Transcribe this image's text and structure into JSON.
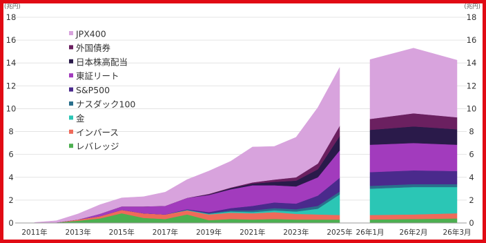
{
  "frame_color": "#e10a14",
  "chart_data": {
    "type": "area",
    "stacked": true,
    "unit_left": "(兆円)",
    "unit_right": "(兆円)",
    "ylim": [
      0,
      18
    ],
    "yticks": [
      0,
      2,
      4,
      6,
      8,
      10,
      12,
      14,
      16,
      18
    ],
    "grid": true,
    "legend_position": "top-left",
    "annual": {
      "x": [
        "2011年",
        "2012年",
        "2013年",
        "2014年",
        "2015年",
        "2016年",
        "2017年",
        "2018年",
        "2019年",
        "2020年",
        "2021年",
        "2022年",
        "2023年",
        "2024年",
        "2025年"
      ],
      "xticks": [
        "2011年",
        "2013年",
        "2015年",
        "2017年",
        "2019年",
        "2021年",
        "2023年",
        "2025年"
      ]
    },
    "monthly": {
      "x": [
        "26年1月",
        "26年2月",
        "26年3月"
      ]
    },
    "series": [
      {
        "name": "レバレッジ",
        "color": "#4caf50",
        "annual": [
          0,
          0.05,
          0.2,
          0.4,
          0.85,
          0.45,
          0.35,
          0.75,
          0.25,
          0.35,
          0.3,
          0.35,
          0.3,
          0.3,
          0.3
        ],
        "monthly": [
          0.3,
          0.35,
          0.4
        ]
      },
      {
        "name": "インバース",
        "color": "#ef6a5a",
        "annual": [
          0,
          0,
          0.1,
          0.2,
          0.3,
          0.4,
          0.4,
          0.35,
          0.5,
          0.55,
          0.55,
          0.6,
          0.5,
          0.45,
          0.4
        ],
        "monthly": [
          0.4,
          0.4,
          0.45
        ]
      },
      {
        "name": "金",
        "color": "#2bc6b5",
        "annual": [
          0,
          0,
          0,
          0,
          0,
          0,
          0,
          0.05,
          0.05,
          0.1,
          0.1,
          0.15,
          0.2,
          0.5,
          1.8
        ],
        "monthly": [
          2.3,
          2.4,
          2.3
        ]
      },
      {
        "name": "ナスダック100",
        "color": "#2a6f8c",
        "annual": [
          0,
          0,
          0,
          0,
          0,
          0,
          0,
          0,
          0.05,
          0.1,
          0.15,
          0.2,
          0.2,
          0.25,
          0.25
        ],
        "monthly": [
          0.25,
          0.25,
          0.25
        ]
      },
      {
        "name": "S&P500",
        "color": "#4a2a8c",
        "annual": [
          0,
          0,
          0,
          0,
          0,
          0,
          0,
          0.05,
          0.1,
          0.2,
          0.4,
          0.5,
          0.5,
          0.9,
          1.2
        ],
        "monthly": [
          1.2,
          1.2,
          1.15
        ]
      },
      {
        "name": "東証リート",
        "color": "#a23bbd",
        "annual": [
          0,
          0,
          0,
          0.2,
          0.3,
          0.6,
          0.75,
          1.0,
          1.5,
          1.65,
          1.8,
          1.5,
          1.5,
          1.6,
          2.4
        ],
        "monthly": [
          2.4,
          2.4,
          2.3
        ]
      },
      {
        "name": "日本株高配当",
        "color": "#2a1a4a",
        "annual": [
          0,
          0,
          0,
          0,
          0,
          0,
          0,
          0,
          0.05,
          0.1,
          0.15,
          0.3,
          0.5,
          0.7,
          1.25
        ],
        "monthly": [
          1.3,
          1.45,
          1.35
        ]
      },
      {
        "name": "外国債券",
        "color": "#6b2060",
        "annual": [
          0,
          0,
          0,
          0,
          0,
          0,
          0,
          0,
          0.05,
          0.05,
          0.1,
          0.2,
          0.3,
          0.5,
          0.9
        ],
        "monthly": [
          0.95,
          1.15,
          1.05
        ]
      },
      {
        "name": "JPX400",
        "color": "#d8a3dd",
        "annual": [
          0.05,
          0.15,
          0.5,
          0.8,
          0.75,
          0.85,
          1.2,
          1.6,
          2.0,
          2.3,
          3.1,
          2.9,
          3.5,
          4.9,
          5.1
        ],
        "monthly": [
          5.2,
          5.7,
          5.0
        ]
      }
    ]
  }
}
